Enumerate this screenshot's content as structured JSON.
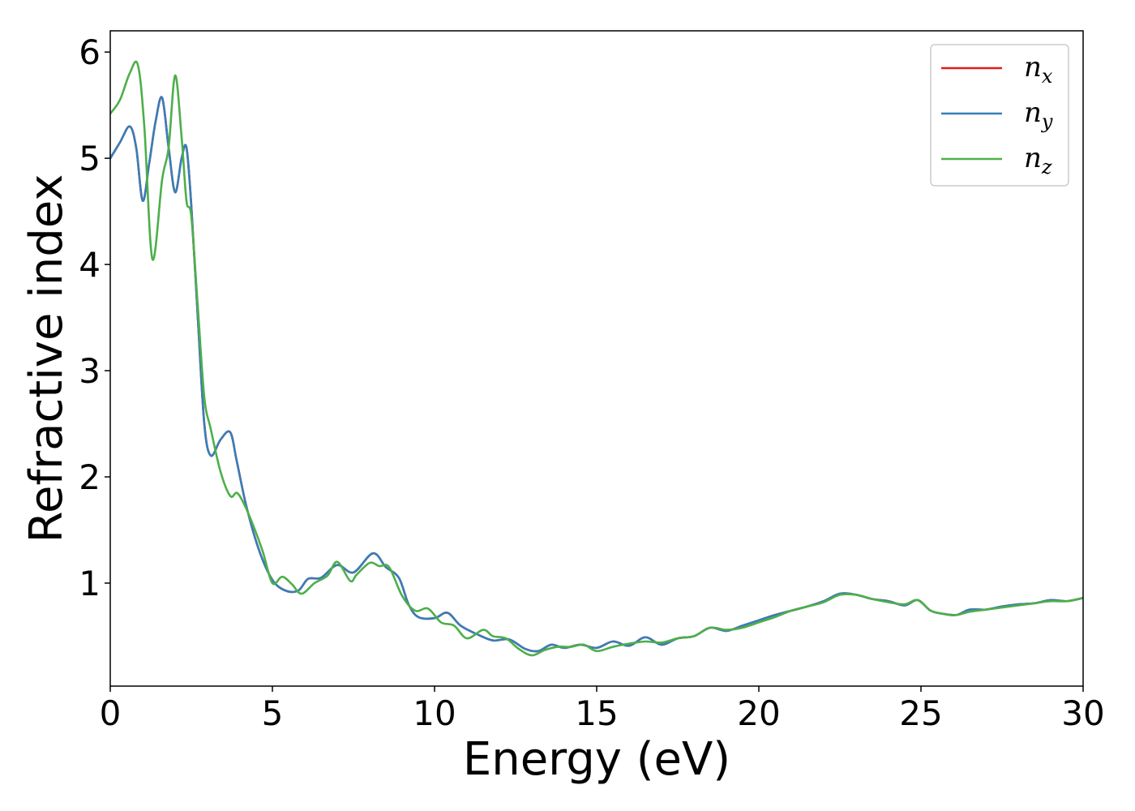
{
  "chart_data": {
    "type": "line",
    "title": "",
    "xlabel": "Energy (eV)",
    "ylabel": "Refractive index",
    "xlim": [
      0,
      30
    ],
    "ylim": [
      0.03,
      6.2
    ],
    "xticks": [
      0,
      5,
      10,
      15,
      20,
      25,
      30
    ],
    "xtick_labels": [
      "0",
      "5",
      "10",
      "15",
      "20",
      "25",
      "30"
    ],
    "yticks": [
      1,
      2,
      3,
      4,
      5,
      6
    ],
    "ytick_labels": [
      "1",
      "2",
      "3",
      "4",
      "5",
      "6"
    ],
    "grid": false,
    "legend_position": "top-right",
    "series": [
      {
        "name": "n_x",
        "label_main": "n",
        "label_sub": "x",
        "color": "#e41a1c",
        "x": [
          0,
          0.3,
          0.6,
          0.8,
          1.0,
          1.2,
          1.4,
          1.6,
          1.8,
          2.0,
          2.2,
          2.35,
          2.5,
          2.7,
          2.9,
          3.1,
          3.4,
          3.7,
          3.9,
          4.2,
          4.6,
          5.0,
          5.4,
          5.8,
          6.1,
          6.5,
          7.0,
          7.5,
          8.1,
          8.5,
          8.9,
          9.2,
          9.5,
          10.0,
          10.4,
          10.8,
          11.3,
          11.8,
          12.3,
          12.8,
          13.2,
          13.6,
          14.0,
          14.5,
          15.0,
          15.5,
          16.0,
          16.5,
          17.0,
          17.5,
          18.0,
          18.5,
          19.0,
          19.5,
          20.0,
          20.5,
          21.0,
          21.5,
          22.0,
          22.5,
          23.0,
          23.5,
          24.0,
          24.5,
          24.9,
          25.3,
          25.7,
          26.1,
          26.5,
          27.0,
          27.5,
          28.0,
          28.5,
          29.0,
          29.5,
          30.0
        ],
        "y": [
          5.0,
          5.15,
          5.3,
          5.1,
          4.6,
          4.95,
          5.35,
          5.57,
          5.1,
          4.68,
          5.0,
          5.1,
          4.55,
          3.5,
          2.5,
          2.2,
          2.35,
          2.42,
          2.15,
          1.72,
          1.3,
          1.03,
          0.93,
          0.93,
          1.04,
          1.05,
          1.17,
          1.1,
          1.28,
          1.15,
          1.05,
          0.8,
          0.68,
          0.67,
          0.72,
          0.6,
          0.52,
          0.46,
          0.47,
          0.38,
          0.36,
          0.42,
          0.39,
          0.42,
          0.39,
          0.45,
          0.41,
          0.49,
          0.42,
          0.48,
          0.5,
          0.58,
          0.55,
          0.6,
          0.65,
          0.7,
          0.74,
          0.78,
          0.83,
          0.9,
          0.89,
          0.85,
          0.83,
          0.79,
          0.84,
          0.74,
          0.71,
          0.7,
          0.75,
          0.75,
          0.78,
          0.8,
          0.81,
          0.84,
          0.83,
          0.86
        ]
      },
      {
        "name": "n_y",
        "label_main": "n",
        "label_sub": "y",
        "color": "#377eb8",
        "x": [
          0,
          0.3,
          0.6,
          0.8,
          1.0,
          1.2,
          1.4,
          1.6,
          1.8,
          2.0,
          2.2,
          2.35,
          2.5,
          2.7,
          2.9,
          3.1,
          3.4,
          3.7,
          3.9,
          4.2,
          4.6,
          5.0,
          5.4,
          5.8,
          6.1,
          6.5,
          7.0,
          7.5,
          8.1,
          8.5,
          8.9,
          9.2,
          9.5,
          10.0,
          10.4,
          10.8,
          11.3,
          11.8,
          12.3,
          12.8,
          13.2,
          13.6,
          14.0,
          14.5,
          15.0,
          15.5,
          16.0,
          16.5,
          17.0,
          17.5,
          18.0,
          18.5,
          19.0,
          19.5,
          20.0,
          20.5,
          21.0,
          21.5,
          22.0,
          22.5,
          23.0,
          23.5,
          24.0,
          24.5,
          24.9,
          25.3,
          25.7,
          26.1,
          26.5,
          27.0,
          27.5,
          28.0,
          28.5,
          29.0,
          29.5,
          30.0
        ],
        "y": [
          5.0,
          5.15,
          5.3,
          5.1,
          4.6,
          4.95,
          5.35,
          5.57,
          5.1,
          4.68,
          5.0,
          5.1,
          4.55,
          3.5,
          2.5,
          2.2,
          2.35,
          2.42,
          2.15,
          1.72,
          1.3,
          1.03,
          0.93,
          0.93,
          1.04,
          1.05,
          1.17,
          1.1,
          1.28,
          1.15,
          1.05,
          0.8,
          0.68,
          0.67,
          0.72,
          0.6,
          0.52,
          0.46,
          0.47,
          0.38,
          0.36,
          0.42,
          0.39,
          0.42,
          0.39,
          0.45,
          0.41,
          0.49,
          0.42,
          0.48,
          0.5,
          0.58,
          0.55,
          0.6,
          0.65,
          0.7,
          0.74,
          0.78,
          0.83,
          0.9,
          0.89,
          0.85,
          0.83,
          0.79,
          0.84,
          0.74,
          0.71,
          0.7,
          0.75,
          0.75,
          0.78,
          0.8,
          0.81,
          0.84,
          0.83,
          0.86
        ]
      },
      {
        "name": "n_z",
        "label_main": "n",
        "label_sub": "z",
        "color": "#4daf4a",
        "x": [
          0,
          0.3,
          0.6,
          0.85,
          1.05,
          1.3,
          1.6,
          1.8,
          2.0,
          2.2,
          2.35,
          2.5,
          2.7,
          2.9,
          3.1,
          3.4,
          3.7,
          3.9,
          4.1,
          4.4,
          4.7,
          5.0,
          5.3,
          5.6,
          5.9,
          6.3,
          6.7,
          7.0,
          7.4,
          7.6,
          8.0,
          8.3,
          8.6,
          9.0,
          9.4,
          9.8,
          10.2,
          10.6,
          11.0,
          11.5,
          11.8,
          12.2,
          12.6,
          13.0,
          13.4,
          13.8,
          14.2,
          14.6,
          15.0,
          15.5,
          16.0,
          16.5,
          17.0,
          17.5,
          18.0,
          18.5,
          19.0,
          19.5,
          20.0,
          20.5,
          21.0,
          21.5,
          22.0,
          22.5,
          23.0,
          23.5,
          24.0,
          24.5,
          24.9,
          25.3,
          25.7,
          26.1,
          26.5,
          27.0,
          27.5,
          28.0,
          28.5,
          29.0,
          29.5,
          30.0
        ],
        "y": [
          5.42,
          5.55,
          5.8,
          5.88,
          5.3,
          4.05,
          4.8,
          5.1,
          5.78,
          5.2,
          4.6,
          4.45,
          3.6,
          2.75,
          2.45,
          2.05,
          1.82,
          1.85,
          1.76,
          1.55,
          1.3,
          1.0,
          1.06,
          0.99,
          0.9,
          1.0,
          1.07,
          1.2,
          1.02,
          1.08,
          1.19,
          1.16,
          1.15,
          0.88,
          0.74,
          0.76,
          0.63,
          0.6,
          0.48,
          0.56,
          0.5,
          0.48,
          0.38,
          0.32,
          0.37,
          0.4,
          0.4,
          0.42,
          0.36,
          0.4,
          0.43,
          0.45,
          0.44,
          0.48,
          0.5,
          0.58,
          0.56,
          0.58,
          0.63,
          0.68,
          0.74,
          0.78,
          0.82,
          0.89,
          0.89,
          0.85,
          0.82,
          0.8,
          0.84,
          0.74,
          0.71,
          0.7,
          0.73,
          0.75,
          0.77,
          0.79,
          0.81,
          0.83,
          0.83,
          0.86
        ]
      }
    ]
  }
}
